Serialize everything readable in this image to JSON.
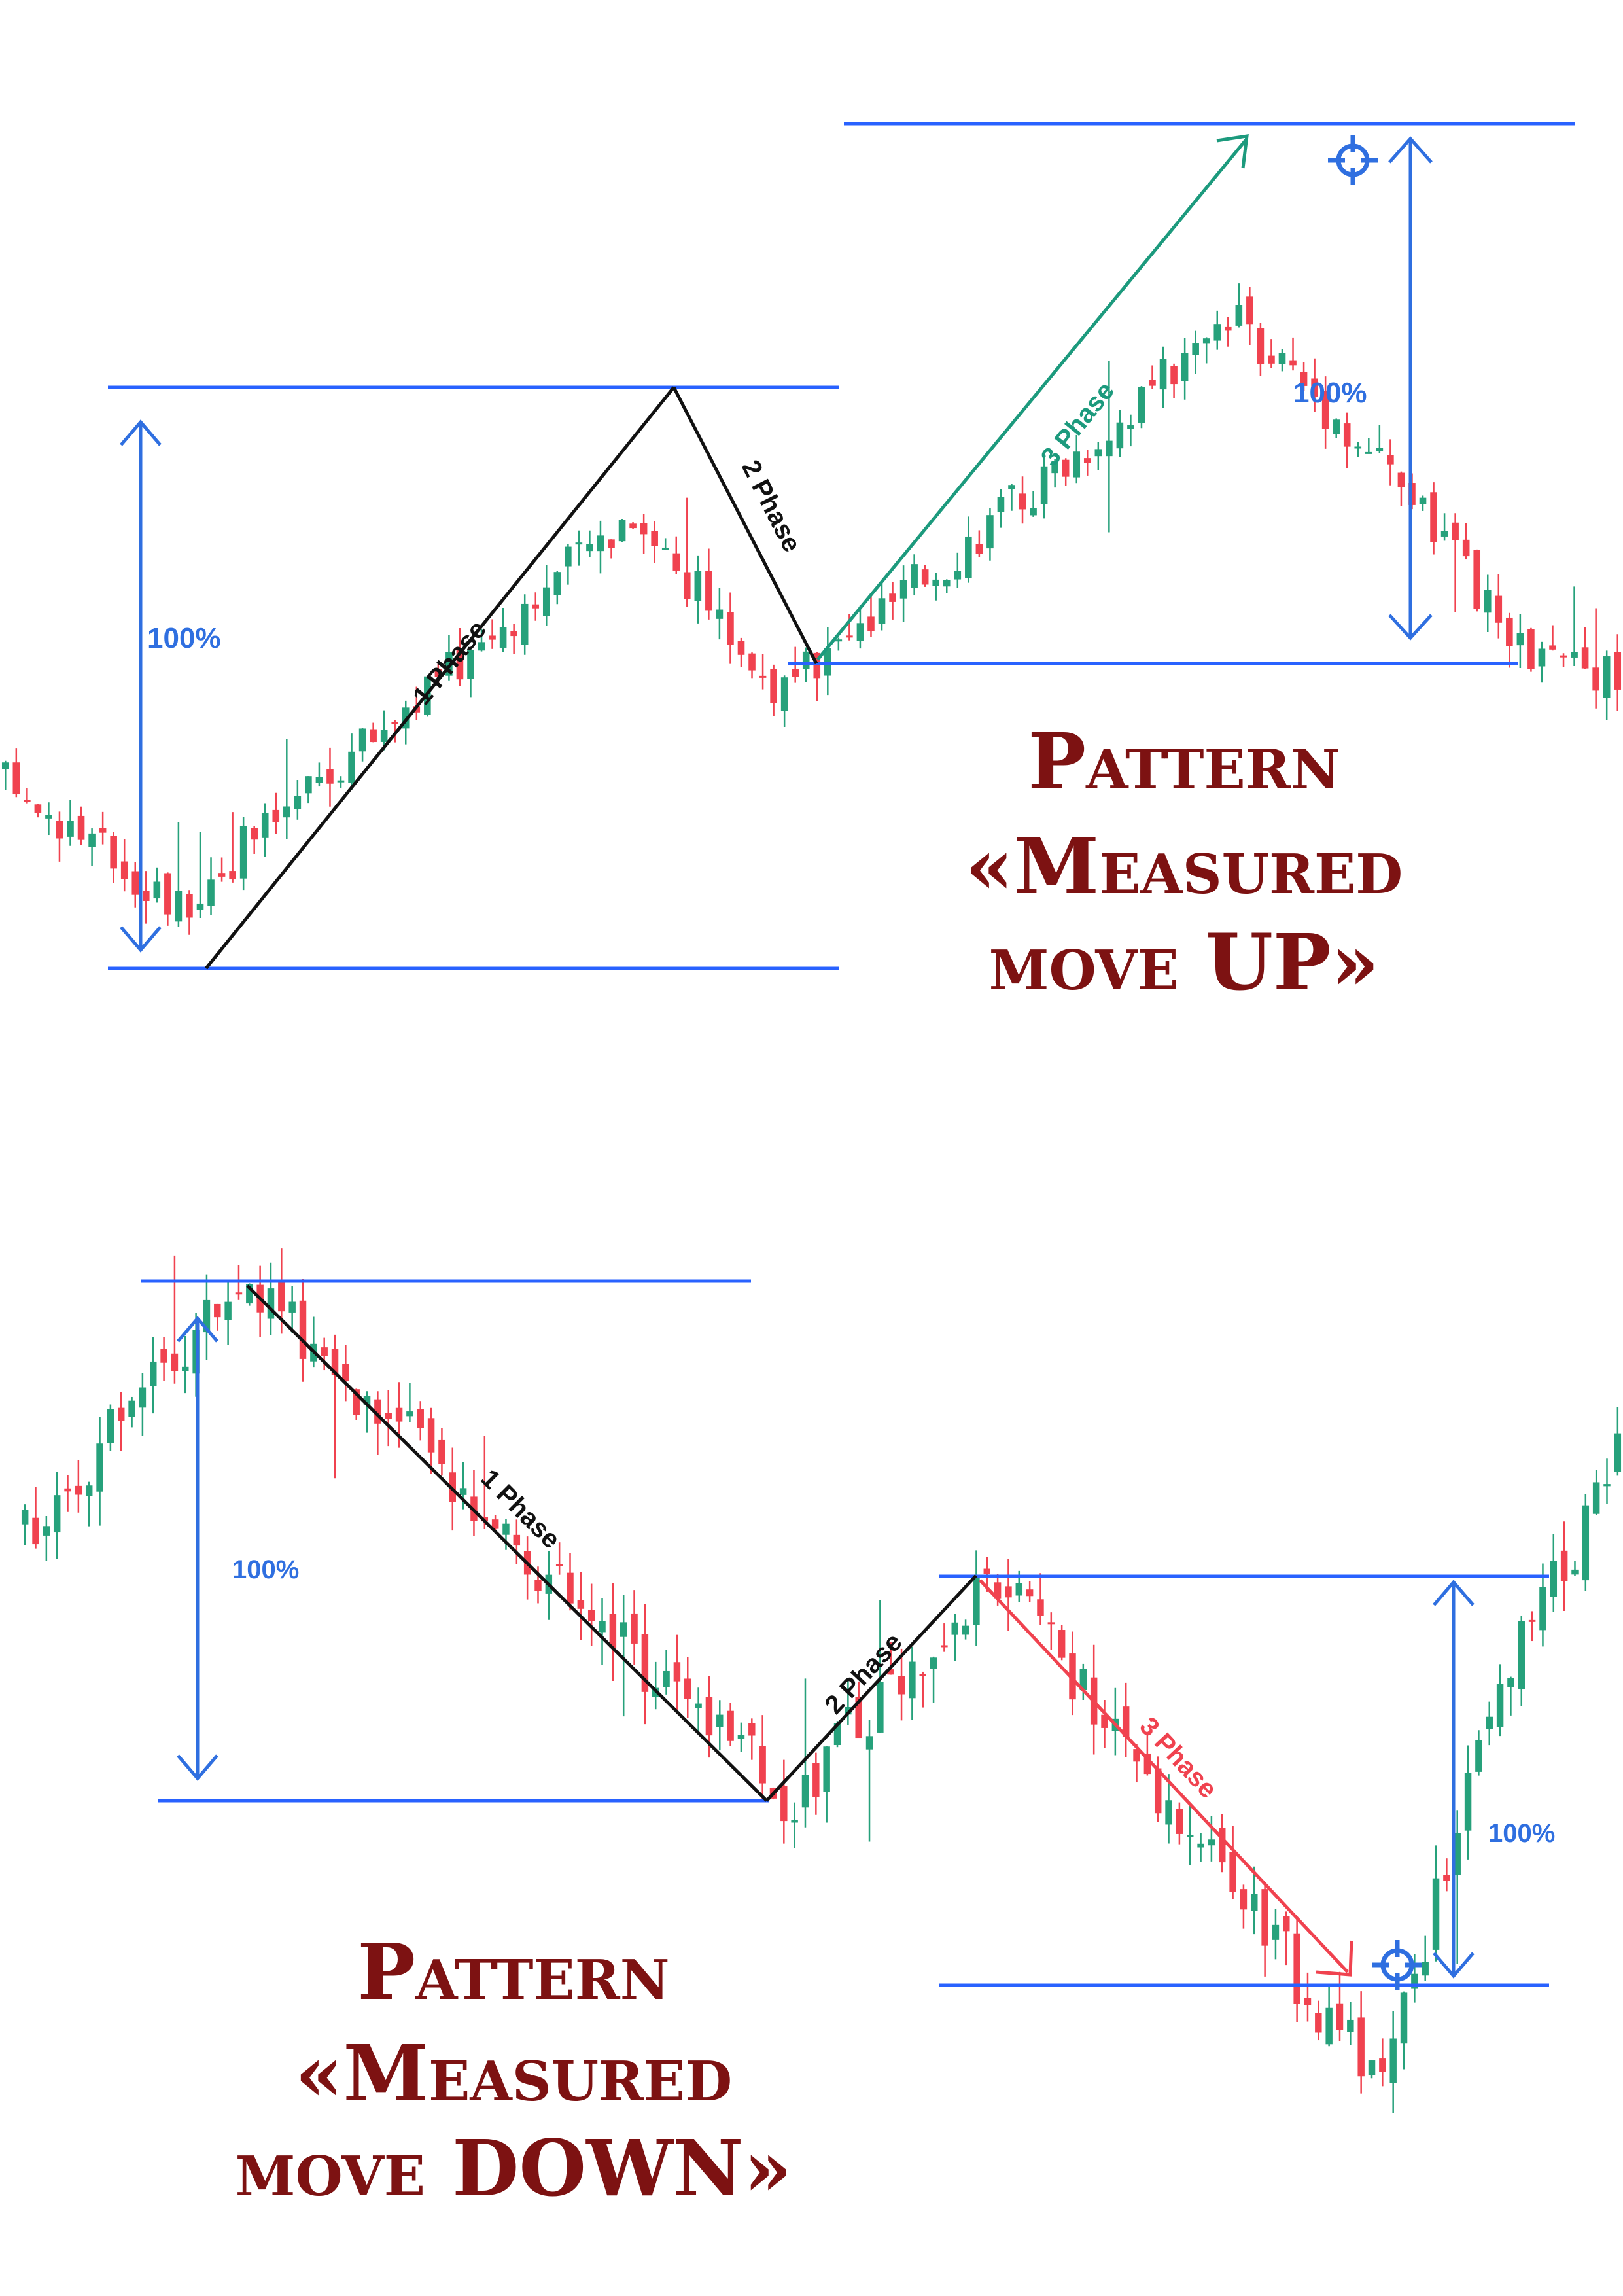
{
  "colors": {
    "bull": "#26a17b",
    "bear": "#f0424f",
    "level_line": "#2962ff",
    "measure_arrow": "#2f6fe0",
    "pct_text": "#2f6fe0",
    "phase_line": "#111111",
    "phase3_up": "#1c9a7d",
    "phase3_down": "#f0424f",
    "title": "#7d1212",
    "target": "#2f6fe0"
  },
  "chart_data": [
    {
      "type": "candlestick-pattern",
      "title": [
        "Pattern",
        "«Measured",
        "move UP»"
      ],
      "measure_left_label": "100%",
      "measure_right_label": "100%",
      "phase_labels": [
        "1 Phase",
        "2 Phase",
        "3 Phase"
      ],
      "target_icon": "crosshair-target-icon",
      "ylim": [
        0,
        100
      ],
      "levels": {
        "base_low": 11,
        "phase1_high": 79,
        "phase2_low": 47,
        "target_high": 111
      },
      "path": [
        {
          "x": 0.11,
          "y": 11
        },
        {
          "x": 0.39,
          "y": 79
        },
        {
          "x": 0.48,
          "y": 47
        },
        {
          "x": 0.76,
          "y": 111
        }
      ],
      "after_target": [
        111,
        104,
        93,
        84,
        70,
        55,
        52,
        50
      ]
    },
    {
      "type": "candlestick-pattern",
      "title": [
        "Pattern",
        "«Measured",
        "move DOWN»"
      ],
      "measure_left_label": "100%",
      "measure_right_label": "100%",
      "phase_labels": [
        "1 Phase",
        "2 Phase",
        "3 Phase"
      ],
      "target_icon": "crosshair-target-icon",
      "ylim": [
        0,
        100
      ],
      "levels": {
        "base_high": 89,
        "phase1_low": 28,
        "phase2_high": 55,
        "target_low": -6
      },
      "path": [
        {
          "x": 0.14,
          "y": 89
        },
        {
          "x": 0.48,
          "y": 28
        },
        {
          "x": 0.61,
          "y": 55
        },
        {
          "x": 0.85,
          "y": -6
        }
      ],
      "after_target": [
        -6,
        8,
        22,
        35,
        46,
        53,
        60,
        70
      ]
    }
  ]
}
